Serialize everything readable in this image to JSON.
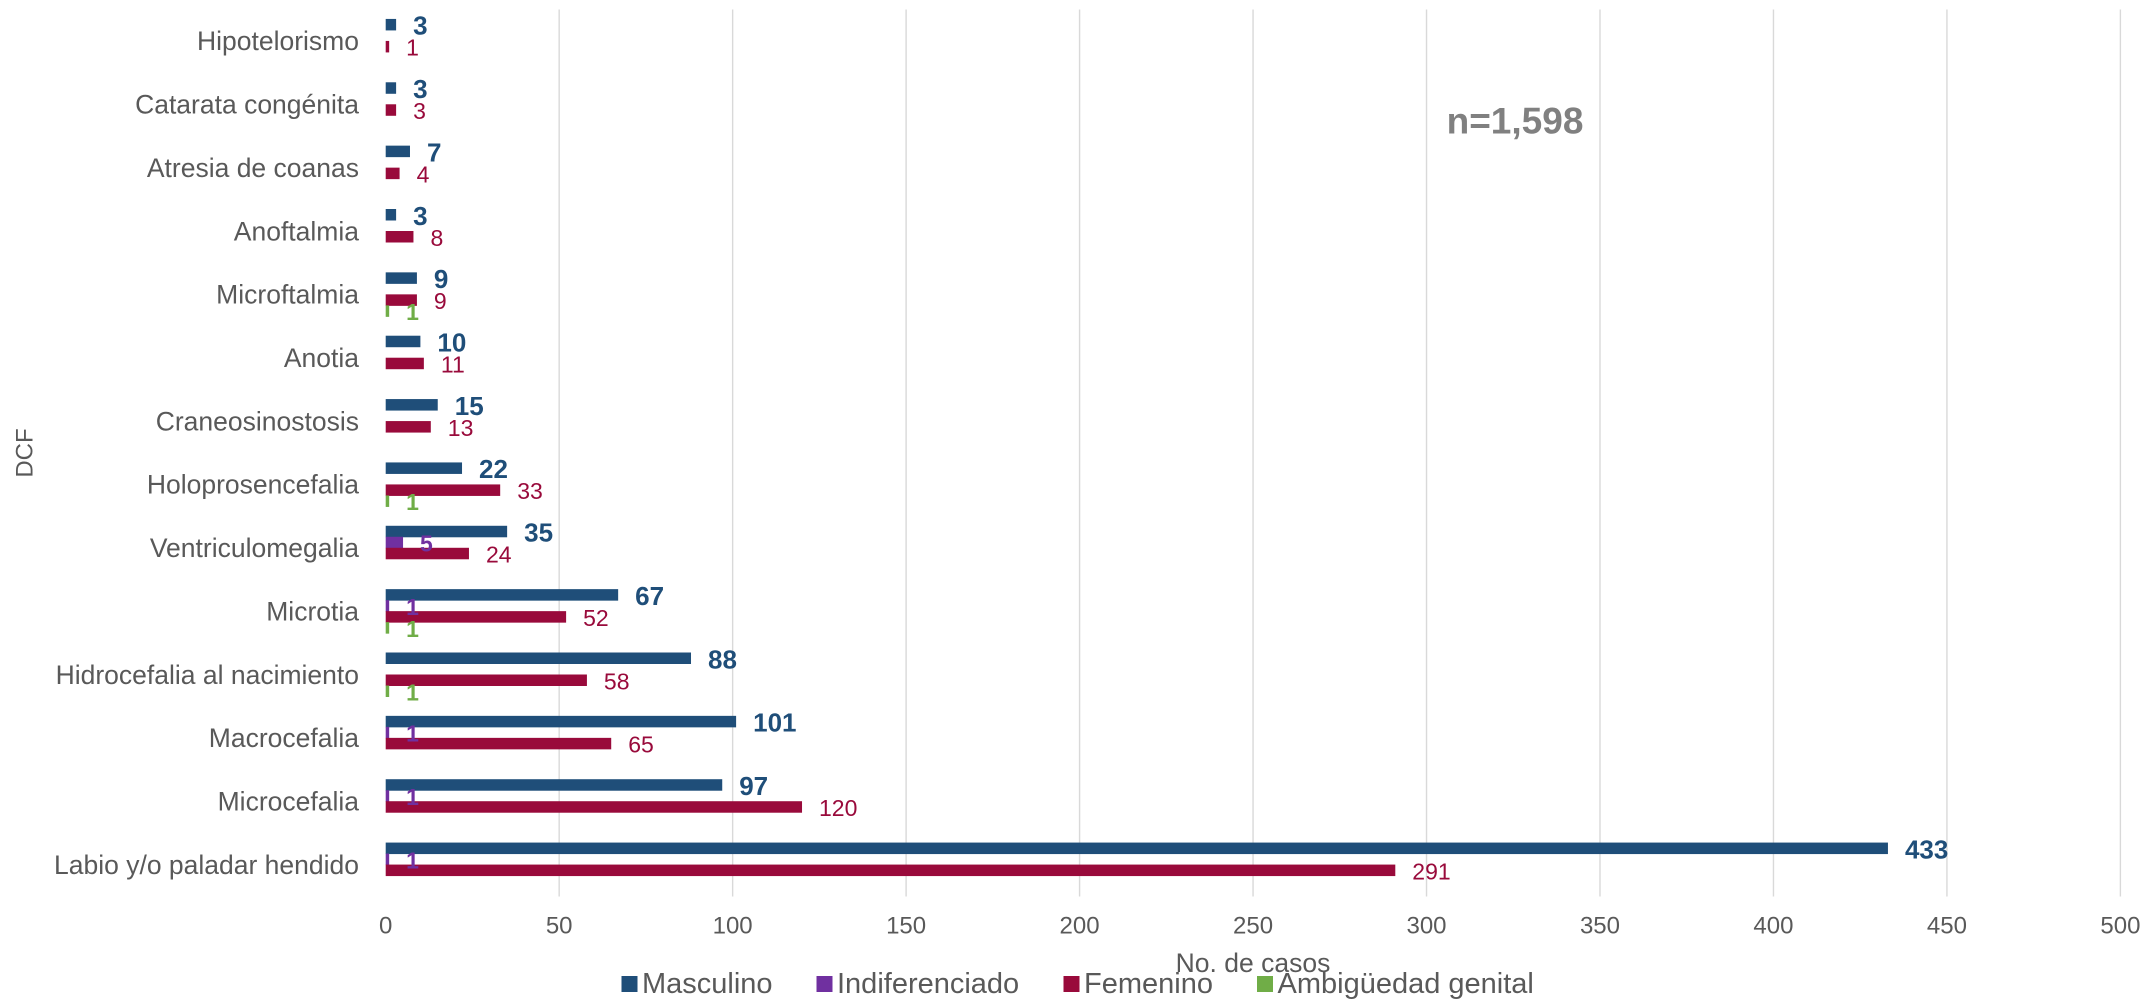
{
  "chart_data": {
    "type": "bar",
    "orientation": "horizontal",
    "grouping": "clustered",
    "xlabel": "No. de casos",
    "ylabel": "DCF",
    "xlim": [
      0,
      500
    ],
    "xticks": [
      "0",
      "50",
      "100",
      "150",
      "200",
      "250",
      "300",
      "350",
      "400",
      "450",
      "500"
    ],
    "grid": true,
    "legend_position": "bottom",
    "annotation": "n=1,598",
    "categories": [
      "Hipotelorismo",
      "Catarata congénita",
      "Atresia de coanas",
      "Anoftalmia",
      "Microftalmia",
      "Anotia",
      "Craneosinostosis",
      "Holoprosencefalia",
      "Ventriculomegalia",
      "Microtia",
      "Hidrocefalia al nacimiento",
      "Macrocefalia",
      "Microcefalia",
      "Labio y/o paladar hendido"
    ],
    "series": [
      {
        "name": "Masculino",
        "color": "#1F4E79",
        "values": [
          3,
          3,
          7,
          3,
          9,
          10,
          15,
          22,
          35,
          67,
          88,
          101,
          97,
          433
        ]
      },
      {
        "name": "Indiferenciado",
        "color": "#7030A0",
        "values": [
          0,
          0,
          0,
          0,
          0,
          0,
          0,
          0,
          5,
          1,
          0,
          1,
          1,
          1
        ]
      },
      {
        "name": "Femenino",
        "color": "#990A3B",
        "values": [
          1,
          3,
          4,
          8,
          9,
          11,
          13,
          33,
          24,
          52,
          58,
          65,
          120,
          291
        ]
      },
      {
        "name": "Ambigüedad genital",
        "color": "#70AD47",
        "values": [
          0,
          0,
          0,
          0,
          1,
          0,
          0,
          1,
          0,
          1,
          1,
          0,
          0,
          0
        ]
      }
    ]
  }
}
